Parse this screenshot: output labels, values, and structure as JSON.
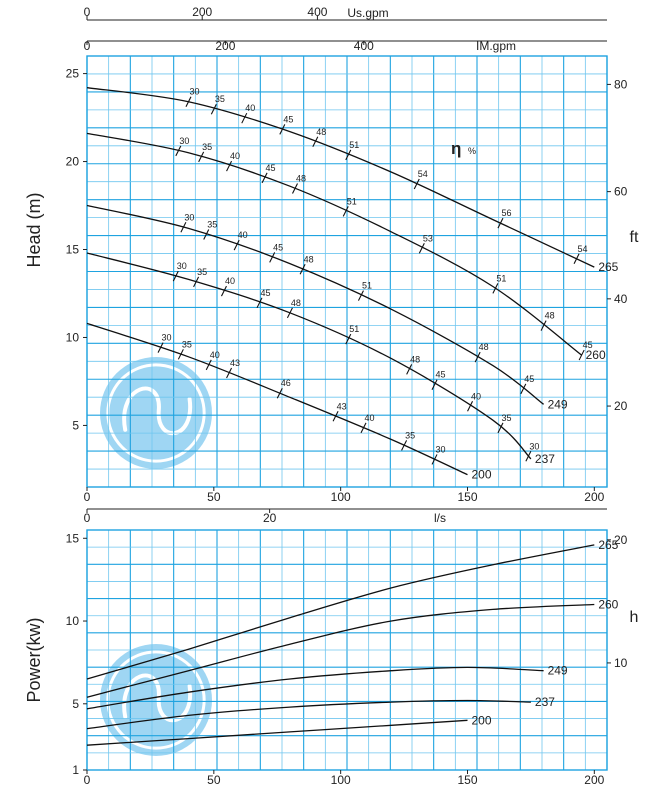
{
  "colors": {
    "grid": "#1fa3e0",
    "grid_minor": "#6fc6ef",
    "curve": "#111111",
    "logo": "#8fd0f2"
  },
  "icons": {
    "logo": "swirl-logo-icon"
  },
  "chart_data": [
    {
      "type": "line",
      "ylabel": "Head (m)",
      "y2label": "ft",
      "xlabel_top_1": "Us.gpm",
      "xlabel_top_2": "IM.gpm",
      "x_unit": "m3/h",
      "xlim": [
        0,
        205
      ],
      "ylim": [
        1.5,
        26
      ],
      "y2lim": [
        4.9,
        85.3
      ],
      "x_ticks": [
        0,
        50,
        100,
        150,
        200
      ],
      "y_ticks": [
        5,
        10,
        15,
        20,
        25
      ],
      "y2_ticks": [
        20,
        40,
        60,
        80
      ],
      "usgpm_ticks": [
        0,
        200,
        400
      ],
      "imgpm_ticks": [
        0,
        200,
        400
      ],
      "efficiency_label": "η",
      "efficiency_unit": "%",
      "grid": true,
      "series": [
        {
          "name": "265",
          "x": [
            0,
            40,
            80,
            120,
            160,
            200
          ],
          "y": [
            24.2,
            23.4,
            21.7,
            19.4,
            16.7,
            14.0
          ]
        },
        {
          "name": "260",
          "x": [
            0,
            40,
            80,
            120,
            160,
            195
          ],
          "y": [
            21.6,
            20.5,
            18.6,
            16.0,
            12.9,
            9.0
          ]
        },
        {
          "name": "249",
          "x": [
            0,
            40,
            80,
            120,
            160,
            180
          ],
          "y": [
            17.5,
            16.2,
            14.2,
            11.6,
            8.4,
            6.2
          ]
        },
        {
          "name": "237",
          "x": [
            0,
            40,
            80,
            120,
            160,
            175
          ],
          "y": [
            14.8,
            13.3,
            11.4,
            8.8,
            5.3,
            3.1
          ]
        },
        {
          "name": "200",
          "x": [
            0,
            40,
            80,
            120,
            150
          ],
          "y": [
            10.8,
            8.9,
            6.6,
            4.2,
            2.2
          ]
        }
      ],
      "efficiency_marks": [
        {
          "curve": "265",
          "labels": [
            "30",
            "35",
            "40",
            "45",
            "48",
            "51",
            "54",
            "56",
            "54"
          ],
          "x": [
            40,
            50,
            62,
            77,
            90,
            103,
            130,
            163,
            193
          ]
        },
        {
          "curve": "260",
          "labels": [
            "30",
            "35",
            "40",
            "45",
            "48",
            "51",
            "53",
            "51",
            "48",
            "45"
          ],
          "x": [
            36,
            45,
            56,
            70,
            82,
            102,
            132,
            161,
            180,
            195
          ]
        },
        {
          "curve": "249",
          "labels": [
            "30",
            "35",
            "40",
            "45",
            "48",
            "51",
            "48",
            "45"
          ],
          "x": [
            38,
            47,
            59,
            73,
            85,
            108,
            154,
            172
          ]
        },
        {
          "curve": "237",
          "labels": [
            "30",
            "35",
            "40",
            "45",
            "48",
            "51",
            "48",
            "45",
            "40",
            "35",
            "30"
          ],
          "x": [
            35,
            43,
            54,
            68,
            80,
            103,
            127,
            137,
            151,
            163,
            174
          ]
        },
        {
          "curve": "200",
          "labels": [
            "30",
            "35",
            "40",
            "43",
            "46",
            "43",
            "40",
            "35",
            "30"
          ],
          "x": [
            29,
            37,
            48,
            56,
            76,
            98,
            109,
            125,
            137
          ]
        }
      ]
    },
    {
      "type": "line",
      "ylabel": "Power(kw)",
      "y2label": "h",
      "xlabel_top": "l/s",
      "xlim": [
        0,
        205
      ],
      "ylim": [
        1,
        15.5
      ],
      "y2lim": [
        1.3,
        20.8
      ],
      "x_ticks": [
        0,
        50,
        100,
        150,
        200
      ],
      "y_ticks": [
        1,
        5,
        10,
        15
      ],
      "y2_ticks": [
        10,
        20
      ],
      "ls_ticks": [
        0,
        20
      ],
      "grid": true,
      "series": [
        {
          "name": "265",
          "x": [
            0,
            40,
            80,
            120,
            160,
            200
          ],
          "y": [
            6.5,
            8.3,
            10.2,
            12.0,
            13.4,
            14.6
          ]
        },
        {
          "name": "260",
          "x": [
            0,
            40,
            80,
            120,
            160,
            200
          ],
          "y": [
            5.4,
            7.0,
            8.6,
            10.0,
            10.7,
            11.0
          ]
        },
        {
          "name": "249",
          "x": [
            0,
            40,
            80,
            120,
            150,
            180
          ],
          "y": [
            4.7,
            5.7,
            6.5,
            7.0,
            7.2,
            7.0
          ]
        },
        {
          "name": "237",
          "x": [
            0,
            40,
            80,
            120,
            150,
            175
          ],
          "y": [
            3.5,
            4.3,
            4.8,
            5.1,
            5.2,
            5.1
          ]
        },
        {
          "name": "200",
          "x": [
            0,
            40,
            80,
            120,
            150
          ],
          "y": [
            2.5,
            2.9,
            3.3,
            3.7,
            4.0
          ]
        }
      ]
    }
  ]
}
